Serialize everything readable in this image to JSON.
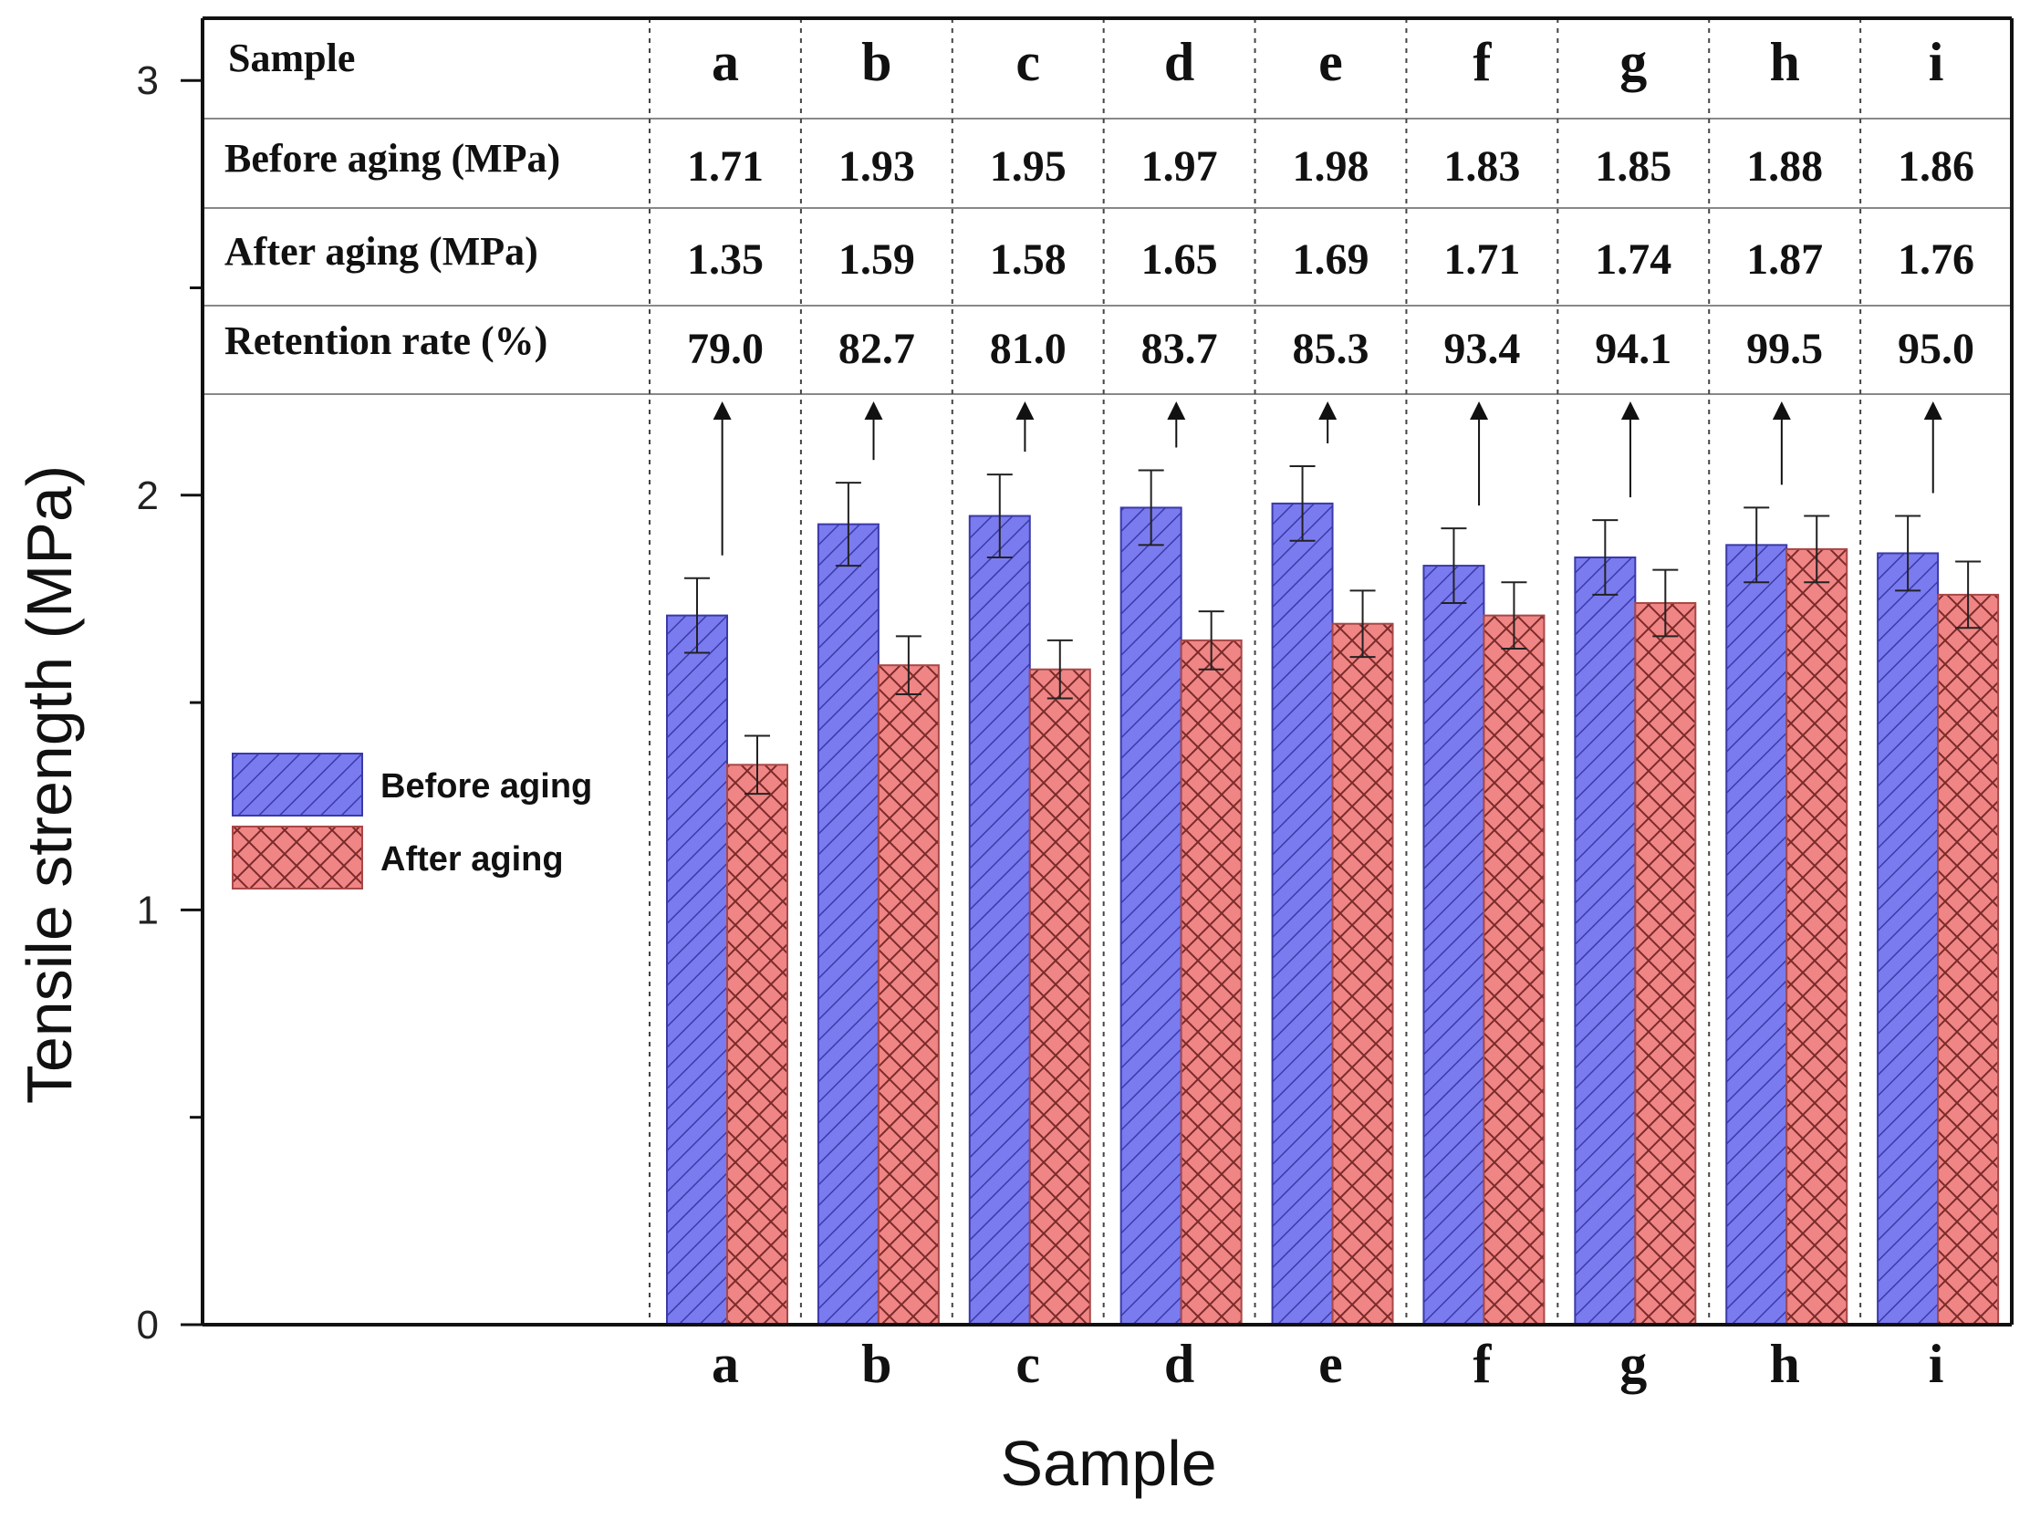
{
  "chart_data": {
    "type": "bar",
    "categories": [
      "a",
      "b",
      "c",
      "d",
      "e",
      "f",
      "g",
      "h",
      "i"
    ],
    "series": [
      {
        "name": "Before aging",
        "values": [
          1.71,
          1.93,
          1.95,
          1.97,
          1.98,
          1.83,
          1.85,
          1.88,
          1.86
        ],
        "errors": [
          0.09,
          0.1,
          0.1,
          0.09,
          0.09,
          0.09,
          0.09,
          0.09,
          0.09
        ],
        "color": "#7b7bf0"
      },
      {
        "name": "After aging",
        "values": [
          1.35,
          1.59,
          1.58,
          1.65,
          1.69,
          1.71,
          1.74,
          1.87,
          1.76
        ],
        "errors": [
          0.07,
          0.07,
          0.07,
          0.07,
          0.08,
          0.08,
          0.08,
          0.08,
          0.08
        ],
        "color": "#f08585"
      }
    ],
    "xlabel": "Sample",
    "ylabel": "Tensile strength (MPa)",
    "ylim": [
      0,
      3.15
    ],
    "yticks": [
      "0",
      "1",
      "2",
      "3"
    ],
    "legend_position": "middle-left",
    "table": {
      "header_label": "Sample",
      "rows": [
        {
          "label": "Before aging (MPa)",
          "values": [
            "1.71",
            "1.93",
            "1.95",
            "1.97",
            "1.98",
            "1.83",
            "1.85",
            "1.88",
            "1.86"
          ]
        },
        {
          "label": "After aging (MPa)",
          "values": [
            "1.35",
            "1.59",
            "1.58",
            "1.65",
            "1.69",
            "1.71",
            "1.74",
            "1.87",
            "1.76"
          ]
        },
        {
          "label": "Retention rate (%)",
          "values": [
            "79.0",
            "82.7",
            "81.0",
            "83.7",
            "85.3",
            "93.4",
            "94.1",
            "99.5",
            "95.0"
          ]
        }
      ]
    }
  }
}
